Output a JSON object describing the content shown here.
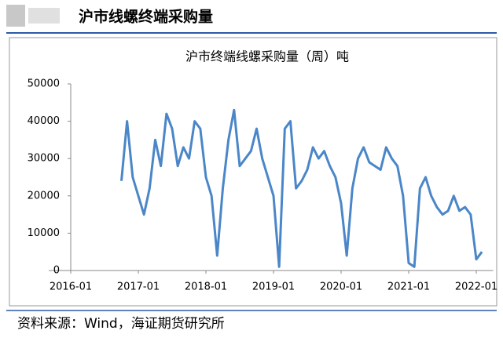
{
  "header": {
    "title": "沪市线螺终端采购量"
  },
  "footer": {
    "source": "资料来源：Wind，海证期货研究所"
  },
  "chart_data": {
    "type": "line",
    "title": "沪市终端线螺采购量（周）吨",
    "x": [
      "2016-10",
      "2016-11",
      "2016-12",
      "2017-01",
      "2017-02",
      "2017-03",
      "2017-04",
      "2017-05",
      "2017-06",
      "2017-07",
      "2017-08",
      "2017-09",
      "2017-10",
      "2017-11",
      "2017-12",
      "2018-01",
      "2018-02",
      "2018-03",
      "2018-04",
      "2018-05",
      "2018-06",
      "2018-07",
      "2018-08",
      "2018-09",
      "2018-10",
      "2018-11",
      "2018-12",
      "2019-01",
      "2019-02",
      "2019-03",
      "2019-04",
      "2019-05",
      "2019-06",
      "2019-07",
      "2019-08",
      "2019-09",
      "2019-10",
      "2019-11",
      "2019-12",
      "2020-01",
      "2020-02",
      "2020-03",
      "2020-04",
      "2020-05",
      "2020-06",
      "2020-07",
      "2020-08",
      "2020-09",
      "2020-10",
      "2020-11",
      "2020-12",
      "2021-01",
      "2021-02",
      "2021-03",
      "2021-04",
      "2021-05",
      "2021-06",
      "2021-07",
      "2021-08",
      "2021-09",
      "2021-10",
      "2021-11",
      "2021-12",
      "2022-01",
      "2022-02"
    ],
    "series": [
      {
        "name": "沪市终端线螺采购量",
        "color": "#4a86c8",
        "values": [
          24000,
          40000,
          25000,
          20000,
          15000,
          22000,
          35000,
          28000,
          42000,
          38000,
          28000,
          33000,
          30000,
          40000,
          38000,
          25000,
          20000,
          4000,
          22000,
          35000,
          43000,
          28000,
          30000,
          32000,
          38000,
          30000,
          25000,
          20000,
          1000,
          38000,
          40000,
          22000,
          24000,
          27000,
          33000,
          30000,
          32000,
          28000,
          25000,
          18000,
          4000,
          22000,
          30000,
          33000,
          29000,
          28000,
          27000,
          33000,
          30000,
          28000,
          20000,
          2000,
          1000,
          22000,
          25000,
          20000,
          17000,
          15000,
          16000,
          20000,
          16000,
          17000,
          15000,
          3000,
          5000
        ]
      }
    ],
    "xlim": [
      "2016-01",
      "2022-04"
    ],
    "xticks": [
      "2016-01",
      "2017-01",
      "2018-01",
      "2019-01",
      "2020-01",
      "2021-01",
      "2022-01"
    ],
    "ylim": [
      0,
      50000
    ],
    "yticks": [
      0,
      10000,
      20000,
      30000,
      40000,
      50000
    ],
    "grid": false
  }
}
